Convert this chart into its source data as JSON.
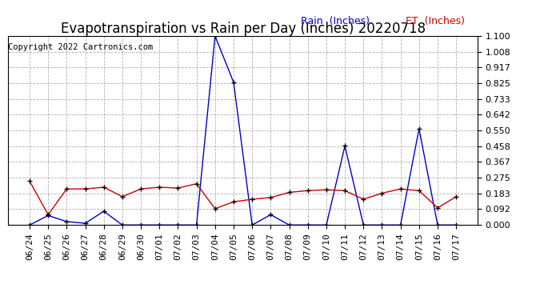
{
  "title": "Evapotranspiration vs Rain per Day (Inches) 20220718",
  "copyright": "Copyright 2022 Cartronics.com",
  "legend_rain": "Rain  (Inches)",
  "legend_et": "ET  (Inches)",
  "x_labels": [
    "06/24",
    "06/25",
    "06/26",
    "06/27",
    "06/28",
    "06/29",
    "06/30",
    "07/01",
    "07/02",
    "07/03",
    "07/04",
    "07/05",
    "07/06",
    "07/07",
    "07/08",
    "07/09",
    "07/10",
    "07/11",
    "07/12",
    "07/13",
    "07/14",
    "07/15",
    "07/16",
    "07/17"
  ],
  "rain_data": [
    0.0,
    0.055,
    0.02,
    0.01,
    0.08,
    0.0,
    0.0,
    0.0,
    0.0,
    0.0,
    1.1,
    0.83,
    0.0,
    0.06,
    0.0,
    0.0,
    0.0,
    0.46,
    0.0,
    0.0,
    0.0,
    0.56,
    0.0,
    0.0
  ],
  "et_data": [
    0.255,
    0.06,
    0.21,
    0.21,
    0.22,
    0.165,
    0.21,
    0.22,
    0.215,
    0.24,
    0.095,
    0.135,
    0.15,
    0.16,
    0.19,
    0.2,
    0.205,
    0.2,
    0.15,
    0.185,
    0.21,
    0.2,
    0.1,
    0.165
  ],
  "rain_color": "#0000cc",
  "et_color": "#cc0000",
  "marker_color": "#000000",
  "background_color": "#ffffff",
  "grid_color": "#b0b0b0",
  "ylim": [
    0.0,
    1.1
  ],
  "yticks": [
    0.0,
    0.092,
    0.183,
    0.275,
    0.367,
    0.458,
    0.55,
    0.642,
    0.733,
    0.825,
    0.917,
    1.008,
    1.1
  ],
  "title_fontsize": 12,
  "copyright_fontsize": 7.5,
  "legend_fontsize": 9,
  "tick_fontsize": 8
}
